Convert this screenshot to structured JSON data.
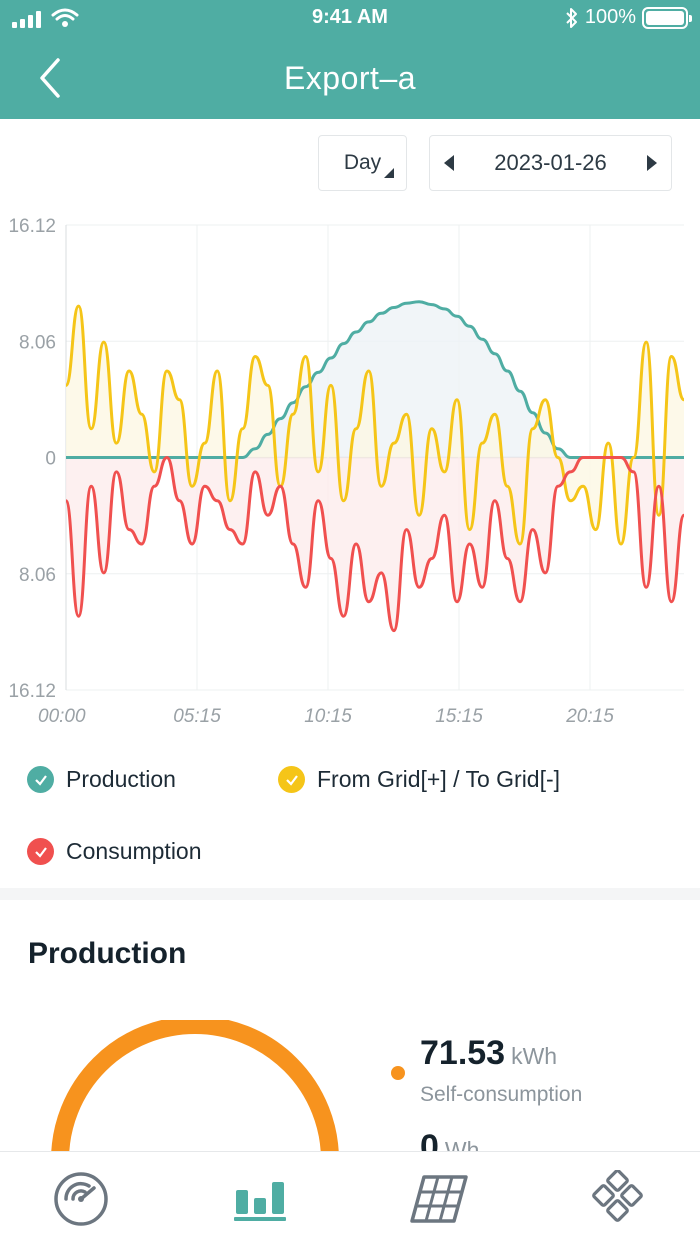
{
  "status_bar": {
    "time": "9:41 AM",
    "battery": "100%"
  },
  "header": {
    "title": "Export–a"
  },
  "controls": {
    "period": "Day",
    "date": "2023-01-26"
  },
  "colors": {
    "accent": "#4fada3",
    "production": "#4fada3",
    "grid": "#f5c518",
    "consumption": "#f0504f",
    "gauge": "#f7931e"
  },
  "chart_data": {
    "type": "line",
    "y_ticks": [
      "16.12",
      "8.06",
      "0",
      "8.06",
      "16.12"
    ],
    "ylim": [
      -16.12,
      16.12
    ],
    "x_ticks": [
      "00:00",
      "05:15",
      "10:15",
      "15:15",
      "20:15"
    ],
    "series": [
      {
        "name": "Production",
        "color": "#4fada3",
        "values": [
          0,
          0,
          0,
          0,
          0,
          0,
          0,
          0,
          0,
          0,
          0,
          0,
          0,
          0,
          0,
          0.6,
          1.6,
          2.7,
          3.8,
          4.9,
          5.9,
          6.9,
          7.9,
          8.7,
          9.4,
          10.0,
          10.4,
          10.7,
          10.8,
          10.6,
          10.3,
          9.8,
          9.1,
          8.2,
          7.2,
          6.0,
          4.6,
          3.1,
          1.7,
          0.6,
          0,
          0,
          0,
          0,
          0,
          0,
          0,
          0,
          0,
          0
        ]
      },
      {
        "name": "From Grid[+] / To Grid[-]",
        "color": "#f5c518",
        "values": [
          5,
          10.5,
          2,
          8,
          1,
          6,
          3,
          -1,
          6,
          4,
          -2,
          1,
          6,
          -3,
          2,
          7,
          5,
          -2,
          3,
          7,
          -1,
          5,
          -3,
          2,
          6,
          -2,
          1,
          3,
          -4,
          2,
          -1,
          4,
          -5,
          1,
          3,
          -2,
          -6,
          2,
          4,
          0,
          -3,
          -2,
          -5,
          1,
          -6,
          0,
          8,
          -4,
          7,
          4
        ]
      },
      {
        "name": "Consumption",
        "color": "#f0504f",
        "values": [
          -3,
          -11,
          -2,
          -8,
          -1,
          -5,
          -6,
          -2,
          0,
          -3,
          -6,
          -2,
          -3,
          -5,
          -6,
          -1,
          -4,
          -2,
          -6,
          -9,
          -3,
          -7,
          -11,
          -6,
          -10,
          -8,
          -12,
          -5,
          -9,
          -7,
          -4,
          -10,
          -6,
          -9,
          -3,
          -7,
          -10,
          -5,
          -8,
          -2,
          -1,
          0,
          0,
          0,
          0,
          -1,
          -9,
          -2,
          -10,
          -4
        ]
      }
    ],
    "legend": [
      "Production",
      "From Grid[+] / To Grid[-]",
      "Consumption"
    ]
  },
  "production": {
    "title": "Production",
    "self_consumption_value": "71.53",
    "self_consumption_unit": "kWh",
    "self_consumption_label": "Self-consumption",
    "second_value": "0",
    "second_unit": "Wh"
  },
  "tabs": [
    {
      "icon": "dashboard-gauge-icon",
      "active": false
    },
    {
      "icon": "bar-chart-icon",
      "active": true
    },
    {
      "icon": "solar-panel-icon",
      "active": false
    },
    {
      "icon": "devices-grid-icon",
      "active": false
    }
  ]
}
